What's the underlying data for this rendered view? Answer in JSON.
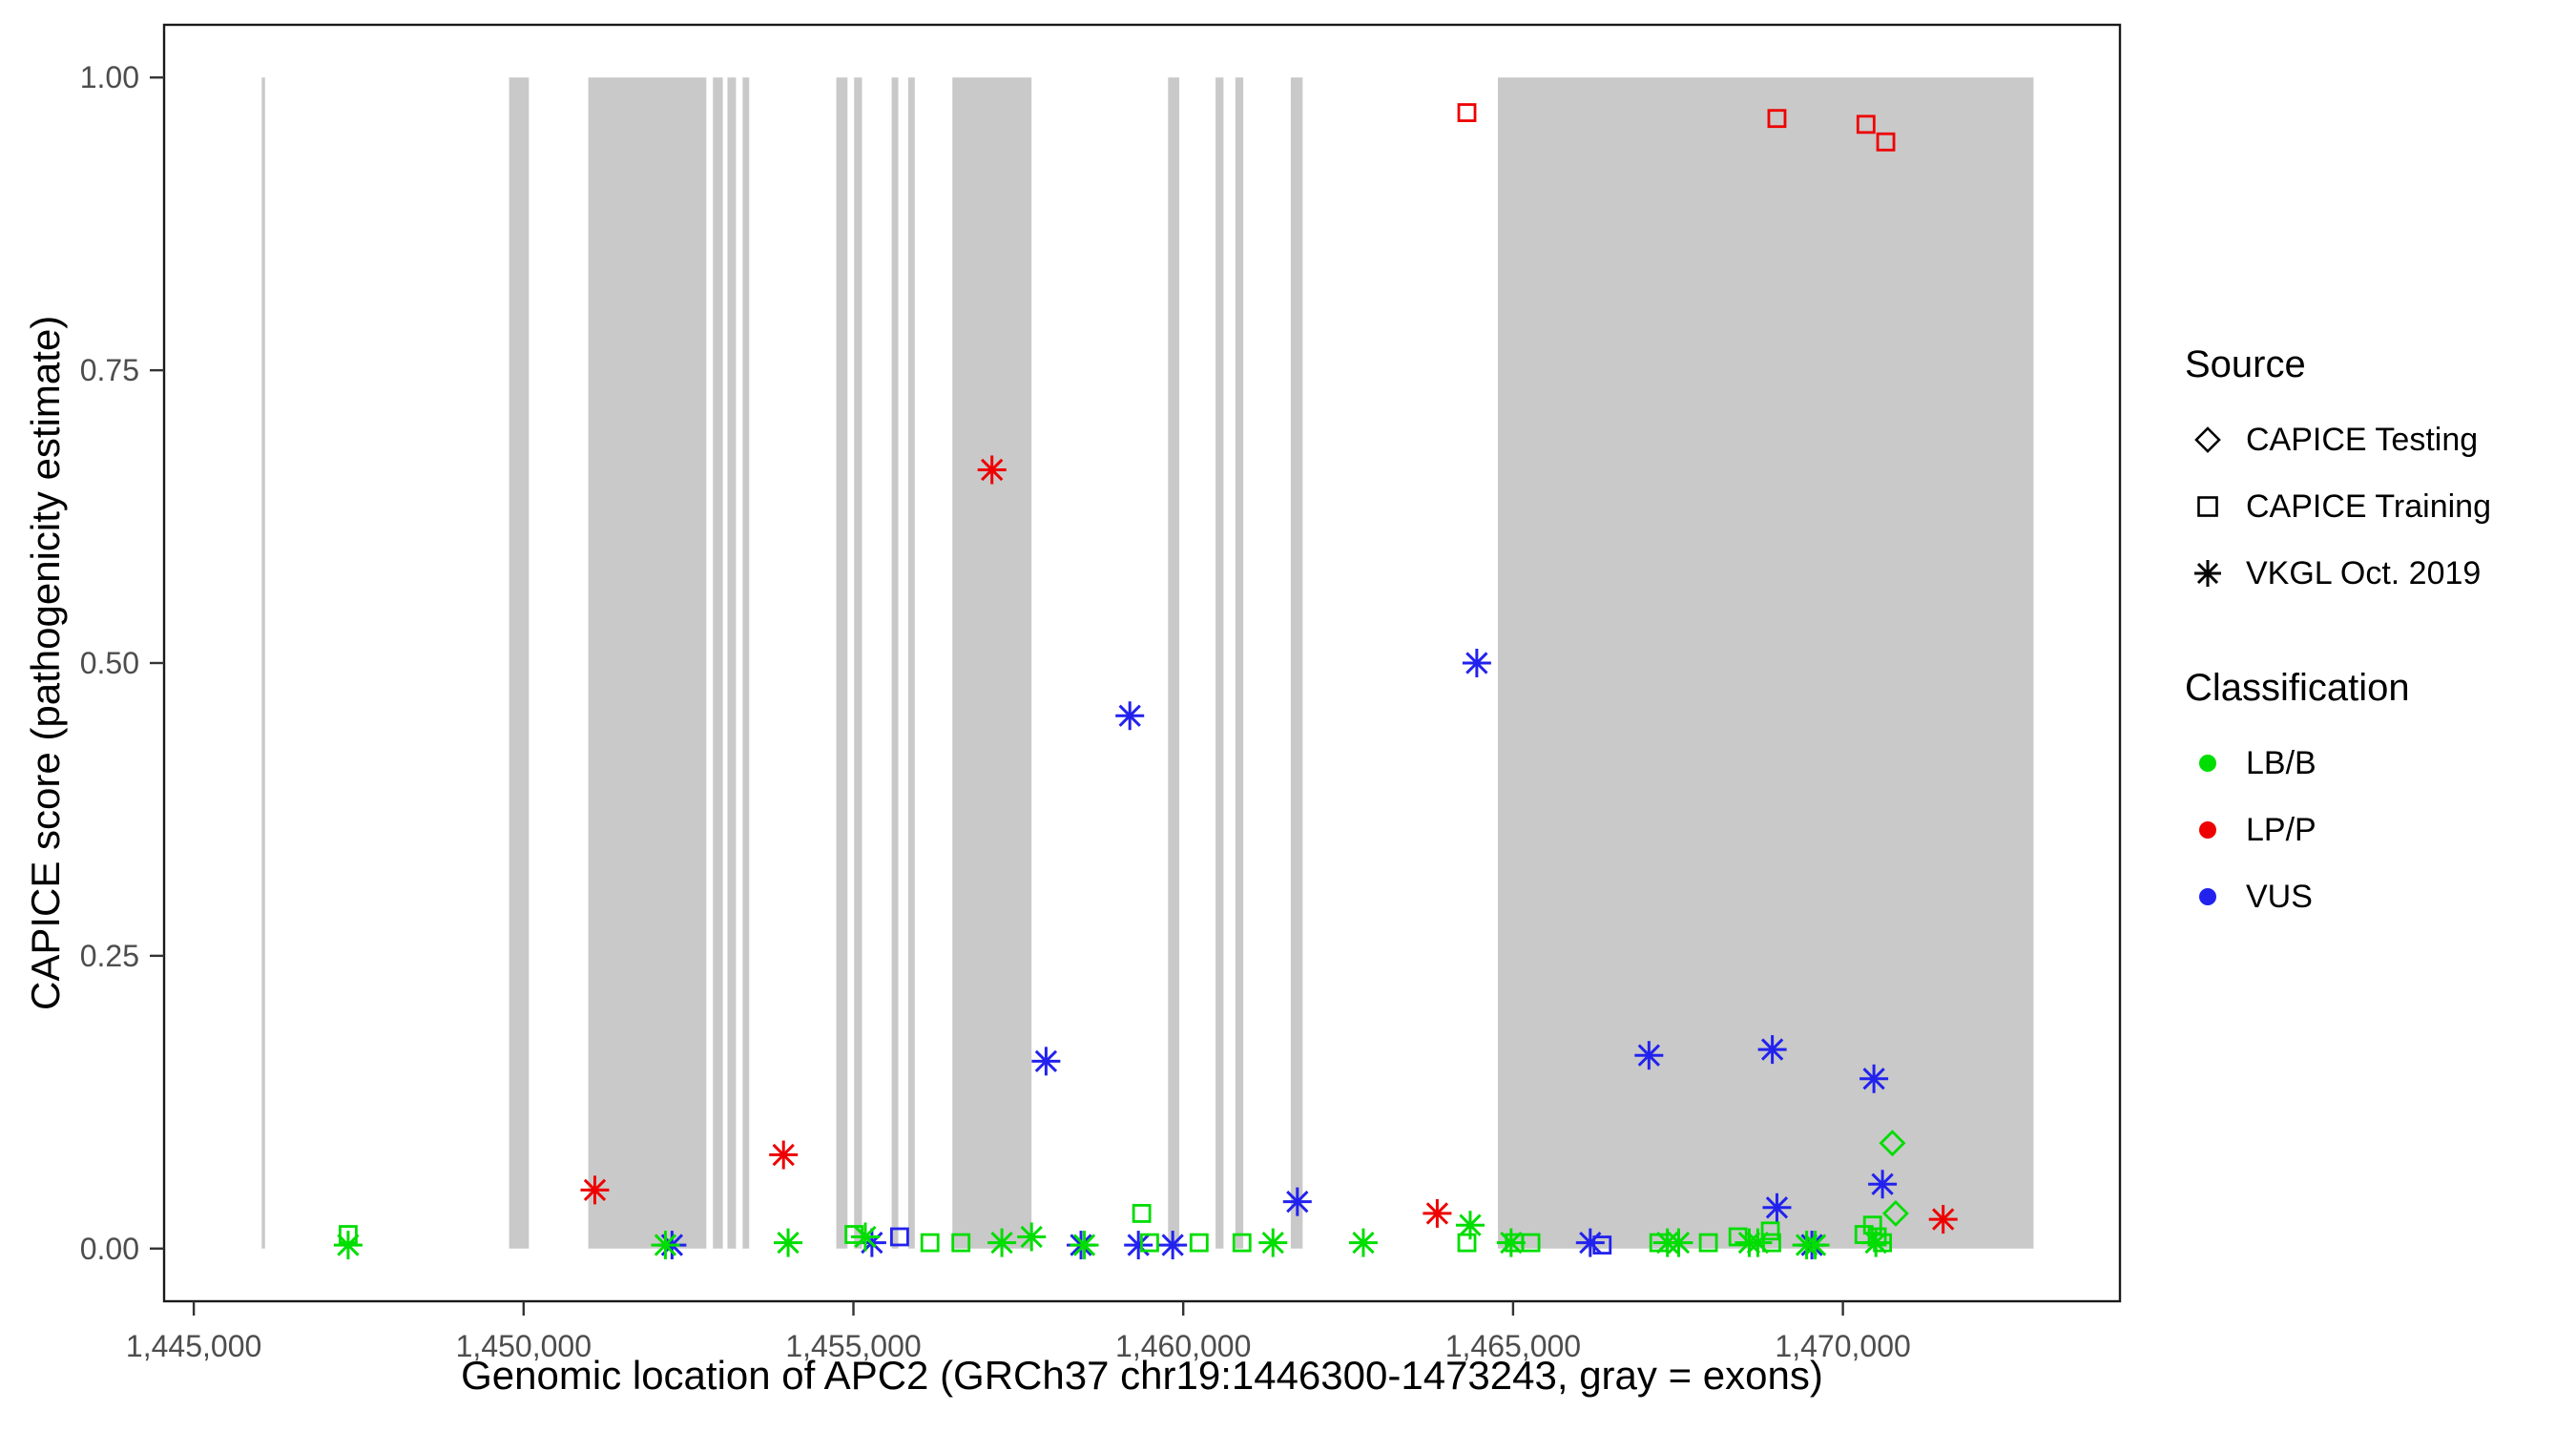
{
  "legend": {
    "source": {
      "title": "Source",
      "items": [
        {
          "label": "CAPICE Testing",
          "symbol": "diamond"
        },
        {
          "label": "CAPICE Training",
          "symbol": "square"
        },
        {
          "label": "VKGL Oct. 2019",
          "symbol": "asterisk"
        }
      ]
    },
    "classification": {
      "title": "Classification",
      "items": [
        {
          "label": "LB/B",
          "color": "#00dd00"
        },
        {
          "label": "LP/P",
          "color": "#ee0000"
        },
        {
          "label": "VUS",
          "color": "#2222ee"
        }
      ]
    }
  },
  "chart_data": {
    "type": "scatter",
    "title": "",
    "xlabel": "Genomic location of APC2 (GRCh37 chr19:1446300-1473243, gray = exons)",
    "ylabel": "CAPICE score (pathogenicity estimate)",
    "xlim": [
      1444550,
      1474200
    ],
    "ylim": [
      -0.045,
      1.045
    ],
    "x_ticks": [
      1445000,
      1450000,
      1455000,
      1460000,
      1465000,
      1470000
    ],
    "x_tick_labels": [
      "1,445,000",
      "1,450,000",
      "1,455,000",
      "1,460,000",
      "1,465,000",
      "1,470,000"
    ],
    "y_ticks": [
      0.0,
      0.25,
      0.5,
      0.75,
      1.0
    ],
    "y_tick_labels": [
      "0.00",
      "0.25",
      "0.50",
      "0.75",
      "1.00"
    ],
    "grid": false,
    "legend_position": "right",
    "exon_color": "#c9c9c9",
    "exons": [
      [
        1446030,
        1446080
      ],
      [
        1449780,
        1450080
      ],
      [
        1450980,
        1452770
      ],
      [
        1452870,
        1453020
      ],
      [
        1453090,
        1453220
      ],
      [
        1453320,
        1453420
      ],
      [
        1454740,
        1454910
      ],
      [
        1455010,
        1455130
      ],
      [
        1455580,
        1455680
      ],
      [
        1455830,
        1455930
      ],
      [
        1456500,
        1457700
      ],
      [
        1459770,
        1459940
      ],
      [
        1460490,
        1460610
      ],
      [
        1460790,
        1460910
      ],
      [
        1461630,
        1461810
      ],
      [
        1464770,
        1472890
      ]
    ],
    "colors": {
      "LB/B": "#00dd00",
      "LP/P": "#ee0000",
      "VUS": "#2222ee"
    },
    "shapes": {
      "CAPICE Testing": "diamond",
      "CAPICE Training": "square",
      "VKGL Oct. 2019": "asterisk"
    },
    "points": [
      {
        "x": 1464300,
        "y": 0.97,
        "source": "CAPICE Training",
        "classification": "LP/P"
      },
      {
        "x": 1469000,
        "y": 0.965,
        "source": "CAPICE Training",
        "classification": "LP/P"
      },
      {
        "x": 1470350,
        "y": 0.96,
        "source": "CAPICE Training",
        "classification": "LP/P"
      },
      {
        "x": 1470650,
        "y": 0.945,
        "source": "CAPICE Training",
        "classification": "LP/P"
      },
      {
        "x": 1451080,
        "y": 0.05,
        "source": "VKGL Oct. 2019",
        "classification": "LP/P"
      },
      {
        "x": 1453940,
        "y": 0.08,
        "source": "VKGL Oct. 2019",
        "classification": "LP/P"
      },
      {
        "x": 1457100,
        "y": 0.665,
        "source": "VKGL Oct. 2019",
        "classification": "LP/P"
      },
      {
        "x": 1463850,
        "y": 0.03,
        "source": "VKGL Oct. 2019",
        "classification": "LP/P"
      },
      {
        "x": 1471520,
        "y": 0.025,
        "source": "VKGL Oct. 2019",
        "classification": "LP/P"
      },
      {
        "x": 1459190,
        "y": 0.455,
        "source": "VKGL Oct. 2019",
        "classification": "VUS"
      },
      {
        "x": 1457920,
        "y": 0.16,
        "source": "VKGL Oct. 2019",
        "classification": "VUS"
      },
      {
        "x": 1464450,
        "y": 0.5,
        "source": "VKGL Oct. 2019",
        "classification": "VUS"
      },
      {
        "x": 1467060,
        "y": 0.165,
        "source": "VKGL Oct. 2019",
        "classification": "VUS"
      },
      {
        "x": 1468930,
        "y": 0.17,
        "source": "VKGL Oct. 2019",
        "classification": "VUS"
      },
      {
        "x": 1470470,
        "y": 0.145,
        "source": "VKGL Oct. 2019",
        "classification": "VUS"
      },
      {
        "x": 1470600,
        "y": 0.055,
        "source": "VKGL Oct. 2019",
        "classification": "VUS"
      },
      {
        "x": 1469000,
        "y": 0.035,
        "source": "VKGL Oct. 2019",
        "classification": "VUS"
      },
      {
        "x": 1461730,
        "y": 0.04,
        "source": "VKGL Oct. 2019",
        "classification": "VUS"
      },
      {
        "x": 1455280,
        "y": 0.005,
        "source": "VKGL Oct. 2019",
        "classification": "VUS"
      },
      {
        "x": 1452250,
        "y": 0.003,
        "source": "VKGL Oct. 2019",
        "classification": "VUS"
      },
      {
        "x": 1458450,
        "y": 0.003,
        "source": "VKGL Oct. 2019",
        "classification": "VUS"
      },
      {
        "x": 1459320,
        "y": 0.003,
        "source": "VKGL Oct. 2019",
        "classification": "VUS"
      },
      {
        "x": 1459840,
        "y": 0.003,
        "source": "VKGL Oct. 2019",
        "classification": "VUS"
      },
      {
        "x": 1466170,
        "y": 0.005,
        "source": "VKGL Oct. 2019",
        "classification": "VUS"
      },
      {
        "x": 1469530,
        "y": 0.003,
        "source": "VKGL Oct. 2019",
        "classification": "VUS"
      },
      {
        "x": 1455700,
        "y": 0.01,
        "source": "CAPICE Training",
        "classification": "VUS"
      },
      {
        "x": 1466350,
        "y": 0.003,
        "source": "CAPICE Training",
        "classification": "VUS"
      },
      {
        "x": 1470750,
        "y": 0.09,
        "source": "CAPICE Testing",
        "classification": "LB/B"
      },
      {
        "x": 1470800,
        "y": 0.03,
        "source": "CAPICE Testing",
        "classification": "LB/B"
      },
      {
        "x": 1447340,
        "y": 0.012,
        "source": "CAPICE Training",
        "classification": "LB/B"
      },
      {
        "x": 1455010,
        "y": 0.012,
        "source": "CAPICE Training",
        "classification": "LB/B"
      },
      {
        "x": 1456160,
        "y": 0.005,
        "source": "CAPICE Training",
        "classification": "LB/B"
      },
      {
        "x": 1456630,
        "y": 0.005,
        "source": "CAPICE Training",
        "classification": "LB/B"
      },
      {
        "x": 1459370,
        "y": 0.03,
        "source": "CAPICE Training",
        "classification": "LB/B"
      },
      {
        "x": 1459490,
        "y": 0.005,
        "source": "CAPICE Training",
        "classification": "LB/B"
      },
      {
        "x": 1460240,
        "y": 0.005,
        "source": "CAPICE Training",
        "classification": "LB/B"
      },
      {
        "x": 1460890,
        "y": 0.005,
        "source": "CAPICE Training",
        "classification": "LB/B"
      },
      {
        "x": 1464300,
        "y": 0.005,
        "source": "CAPICE Training",
        "classification": "LB/B"
      },
      {
        "x": 1465020,
        "y": 0.005,
        "source": "CAPICE Training",
        "classification": "LB/B"
      },
      {
        "x": 1465270,
        "y": 0.005,
        "source": "CAPICE Training",
        "classification": "LB/B"
      },
      {
        "x": 1467210,
        "y": 0.005,
        "source": "CAPICE Training",
        "classification": "LB/B"
      },
      {
        "x": 1467960,
        "y": 0.005,
        "source": "CAPICE Training",
        "classification": "LB/B"
      },
      {
        "x": 1468410,
        "y": 0.01,
        "source": "CAPICE Training",
        "classification": "LB/B"
      },
      {
        "x": 1468900,
        "y": 0.015,
        "source": "CAPICE Training",
        "classification": "LB/B"
      },
      {
        "x": 1468920,
        "y": 0.005,
        "source": "CAPICE Training",
        "classification": "LB/B"
      },
      {
        "x": 1470320,
        "y": 0.012,
        "source": "CAPICE Training",
        "classification": "LB/B"
      },
      {
        "x": 1470450,
        "y": 0.02,
        "source": "CAPICE Training",
        "classification": "LB/B"
      },
      {
        "x": 1470520,
        "y": 0.01,
        "source": "CAPICE Training",
        "classification": "LB/B"
      },
      {
        "x": 1470600,
        "y": 0.005,
        "source": "CAPICE Training",
        "classification": "LB/B"
      },
      {
        "x": 1447340,
        "y": 0.003,
        "source": "VKGL Oct. 2019",
        "classification": "LB/B"
      },
      {
        "x": 1452150,
        "y": 0.003,
        "source": "VKGL Oct. 2019",
        "classification": "LB/B"
      },
      {
        "x": 1454010,
        "y": 0.005,
        "source": "VKGL Oct. 2019",
        "classification": "LB/B"
      },
      {
        "x": 1455180,
        "y": 0.01,
        "source": "VKGL Oct. 2019",
        "classification": "LB/B"
      },
      {
        "x": 1457250,
        "y": 0.005,
        "source": "VKGL Oct. 2019",
        "classification": "LB/B"
      },
      {
        "x": 1457700,
        "y": 0.01,
        "source": "VKGL Oct. 2019",
        "classification": "LB/B"
      },
      {
        "x": 1458500,
        "y": 0.003,
        "source": "VKGL Oct. 2019",
        "classification": "LB/B"
      },
      {
        "x": 1461360,
        "y": 0.005,
        "source": "VKGL Oct. 2019",
        "classification": "LB/B"
      },
      {
        "x": 1462730,
        "y": 0.005,
        "source": "VKGL Oct. 2019",
        "classification": "LB/B"
      },
      {
        "x": 1464350,
        "y": 0.02,
        "source": "VKGL Oct. 2019",
        "classification": "LB/B"
      },
      {
        "x": 1464970,
        "y": 0.005,
        "source": "VKGL Oct. 2019",
        "classification": "LB/B"
      },
      {
        "x": 1467340,
        "y": 0.005,
        "source": "VKGL Oct. 2019",
        "classification": "LB/B"
      },
      {
        "x": 1467510,
        "y": 0.005,
        "source": "VKGL Oct. 2019",
        "classification": "LB/B"
      },
      {
        "x": 1468580,
        "y": 0.005,
        "source": "VKGL Oct. 2019",
        "classification": "LB/B"
      },
      {
        "x": 1468710,
        "y": 0.005,
        "source": "VKGL Oct. 2019",
        "classification": "LB/B"
      },
      {
        "x": 1469450,
        "y": 0.003,
        "source": "VKGL Oct. 2019",
        "classification": "LB/B"
      },
      {
        "x": 1469580,
        "y": 0.003,
        "source": "VKGL Oct. 2019",
        "classification": "LB/B"
      },
      {
        "x": 1470500,
        "y": 0.005,
        "source": "VKGL Oct. 2019",
        "classification": "LB/B"
      }
    ]
  }
}
